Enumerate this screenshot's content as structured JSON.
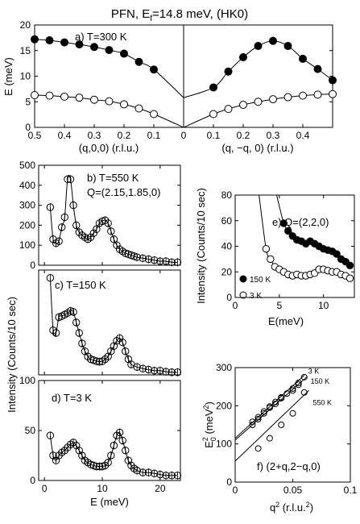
{
  "figure": {
    "title_prefix": "PFN, E",
    "title_sub": "f",
    "title_suffix": "=14.8 meV, (HK0)"
  },
  "chart_data": [
    {
      "id": "a",
      "type": "scatter",
      "annotation": "a) T=300 K",
      "ylabel": "E (meV)",
      "xlabel_left": "(q,0,0) (r.l.u.)",
      "xlabel_right": "(q, −q, 0) (r.l.u.)",
      "ylim": [
        0,
        20
      ],
      "yticks": [
        "0",
        "5",
        "10",
        "15",
        "20"
      ],
      "xticks_left": [
        "0.5",
        "0.4",
        "0.3",
        "0.2",
        "0.1",
        "0"
      ],
      "xticks_right": [
        "0.1",
        "0.2",
        "0.3",
        "0.4"
      ],
      "series": [
        {
          "marker": "filled",
          "x": [
            -0.5,
            -0.45,
            -0.4,
            -0.35,
            -0.3,
            -0.25,
            -0.2,
            -0.15,
            -0.1,
            0.1,
            0.15,
            0.2,
            0.25,
            0.3,
            0.35,
            0.4,
            0.45,
            0.5
          ],
          "y": [
            17.2,
            17.0,
            16.6,
            16.2,
            15.7,
            15.1,
            14.4,
            12.8,
            11.3,
            7.8,
            10.9,
            13.7,
            15.9,
            16.9,
            15.9,
            13.4,
            11.4,
            9.2
          ]
        },
        {
          "marker": "open",
          "x": [
            -0.5,
            -0.45,
            -0.4,
            -0.35,
            -0.3,
            -0.25,
            -0.2,
            -0.15,
            -0.1,
            0.1,
            0.15,
            0.2,
            0.25,
            0.3,
            0.35,
            0.4,
            0.45,
            0.5
          ],
          "y": [
            6.3,
            6.2,
            6.0,
            5.8,
            5.4,
            5.1,
            4.5,
            3.7,
            2.6,
            2.6,
            3.6,
            4.4,
            5.0,
            5.5,
            5.9,
            6.2,
            6.4,
            6.5
          ]
        }
      ]
    },
    {
      "id": "b",
      "type": "scatter",
      "annotation": "b) T=550 K",
      "annotation2": "Q=(2.15,1.85,0)",
      "xlim": [
        -1,
        23.5
      ],
      "ylim": [
        0,
        500
      ],
      "yticks": [
        "0",
        "100",
        "200",
        "300",
        "400",
        "500"
      ],
      "xticks": [
        "0",
        "10",
        "20"
      ],
      "x": [
        1,
        1.5,
        2,
        2.5,
        3,
        3.5,
        4,
        4.5,
        5,
        5.5,
        6,
        6.5,
        7,
        7.5,
        8,
        8.5,
        9,
        9.5,
        10,
        10.5,
        11,
        11.5,
        12,
        12.5,
        13,
        13.5,
        14,
        14.5,
        15,
        15.5,
        16,
        17,
        18,
        19,
        20,
        21,
        22,
        23
      ],
      "y": [
        290,
        130,
        110,
        120,
        190,
        240,
        430,
        430,
        300,
        200,
        165,
        150,
        140,
        130,
        140,
        160,
        180,
        210,
        220,
        225,
        210,
        170,
        130,
        100,
        80,
        70,
        60,
        55,
        50,
        45,
        40,
        35,
        30,
        25,
        20,
        20,
        15,
        15
      ]
    },
    {
      "id": "c",
      "type": "scatter",
      "annotation": "c) T=150 K",
      "xlim": [
        -1,
        23.5
      ],
      "ylim": [
        0,
        200
      ],
      "xticks": [
        "0",
        "10",
        "20"
      ],
      "x": [
        1,
        1.5,
        2,
        2.5,
        3,
        3.5,
        4,
        4.5,
        5,
        5.5,
        6,
        6.5,
        7,
        7.5,
        8,
        8.5,
        9,
        9.5,
        10,
        10.5,
        11,
        11.5,
        12,
        12.5,
        13,
        13.5,
        14,
        14.5,
        15,
        16,
        17,
        18,
        19,
        20,
        21,
        22,
        23
      ],
      "y": [
        185,
        85,
        80,
        110,
        112,
        115,
        118,
        122,
        120,
        100,
        80,
        60,
        45,
        35,
        30,
        28,
        26,
        25,
        26,
        30,
        35,
        45,
        55,
        65,
        70,
        62,
        45,
        30,
        20,
        15,
        12,
        10,
        8,
        8,
        6,
        5,
        5
      ]
    },
    {
      "id": "d",
      "type": "scatter",
      "annotation": "d) T=3 K",
      "xlabel": "E (meV)",
      "xlim": [
        -1,
        23.5
      ],
      "ylim": [
        0,
        100
      ],
      "yticks": [
        "0",
        "50",
        "100"
      ],
      "xticks": [
        "0",
        "10",
        "20"
      ],
      "x": [
        1,
        1.5,
        2,
        2.5,
        3,
        3.5,
        4,
        4.5,
        5,
        5.5,
        6,
        6.5,
        7,
        7.5,
        8,
        8.5,
        9,
        9.5,
        10,
        10.5,
        11,
        11.5,
        12,
        12.5,
        13,
        13.5,
        14,
        14.5,
        15,
        15.5,
        16,
        17,
        18,
        19,
        20,
        21,
        22,
        23
      ],
      "y": [
        45,
        25,
        20,
        25,
        28,
        30,
        33,
        36,
        38,
        35,
        30,
        25,
        20,
        18,
        16,
        15,
        14,
        14,
        14,
        15,
        18,
        25,
        35,
        45,
        48,
        40,
        30,
        20,
        15,
        12,
        10,
        8,
        8,
        7,
        6,
        5,
        5,
        5
      ]
    },
    {
      "id": "left_shared",
      "ylabel": "Intensity (Counts/10 sec)"
    },
    {
      "id": "e",
      "type": "scatter",
      "annotation": "e) Q=(2,2,0)",
      "ylabel": "Intensity (Counts/10 sec)",
      "xlabel": "E(meV)",
      "xlim": [
        0,
        13.5
      ],
      "ylim": [
        0,
        80
      ],
      "yticks": [
        "0",
        "20",
        "40",
        "60",
        "80"
      ],
      "xticks": [
        "0",
        "5",
        "10"
      ],
      "legend": [
        {
          "marker": "filled",
          "label": "150 K"
        },
        {
          "marker": "open",
          "label": "3 K"
        }
      ],
      "series": [
        {
          "name": "150 K",
          "marker": "filled",
          "x": [
            5.5,
            6,
            6.5,
            7,
            7.5,
            8,
            8.5,
            9,
            9.5,
            10,
            10.5,
            11,
            11.5,
            12,
            12.5,
            13
          ],
          "y": [
            58,
            52,
            48,
            45,
            44,
            42,
            44,
            42,
            40,
            38,
            37,
            36,
            34,
            30,
            28,
            25
          ]
        },
        {
          "name": "3 K",
          "marker": "open",
          "x": [
            3.5,
            4,
            4.5,
            5,
            5.5,
            6,
            6.5,
            7,
            7.5,
            8,
            8.5,
            9,
            9.5,
            10,
            10.5,
            11,
            11.5,
            12,
            12.5,
            13
          ],
          "y": [
            38,
            30,
            24,
            22,
            20,
            18,
            17,
            18,
            17,
            17,
            18,
            19,
            22,
            22,
            21,
            20,
            20,
            18,
            17,
            15
          ]
        }
      ]
    },
    {
      "id": "f",
      "type": "scatter",
      "annotation": "f) (2+q,2−q,0)",
      "ylabel_main": "E",
      "ylabel_sub": "0",
      "ylabel_sup": "2",
      "ylabel_rest": " (meV",
      "ylabel_rest_sup": "2",
      "ylabel_close": ")",
      "xlabel_main": "q",
      "xlabel_sup": "2",
      "xlabel_rest": " (r.l.u.",
      "xlabel_rest_sup": "2",
      "xlabel_close": ")",
      "xlim": [
        0,
        0.1
      ],
      "ylim": [
        0,
        300
      ],
      "yticks": [
        "0",
        "100",
        "200",
        "300"
      ],
      "xticks": [
        "0",
        "0.05",
        "0.1"
      ],
      "lines": [
        {
          "label": "3 K",
          "x": [
            0,
            0.06
          ],
          "y": [
            115,
            280
          ]
        },
        {
          "label": "150 K",
          "x": [
            0,
            0.062
          ],
          "y": [
            110,
            275
          ]
        },
        {
          "label": "550 K",
          "x": [
            0,
            0.064
          ],
          "y": [
            55,
            240
          ]
        }
      ],
      "points": {
        "x": [
          0.015,
          0.02,
          0.025,
          0.03,
          0.035,
          0.04,
          0.045,
          0.05,
          0.055,
          0.06,
          0.015,
          0.02,
          0.025,
          0.03,
          0.035,
          0.04,
          0.05,
          0.055,
          0.02,
          0.03,
          0.04,
          0.05,
          0.06
        ],
        "y": [
          150,
          165,
          180,
          195,
          205,
          220,
          232,
          245,
          260,
          275,
          158,
          170,
          185,
          198,
          210,
          222,
          240,
          255,
          88,
          115,
          150,
          180,
          235
        ]
      }
    }
  ]
}
